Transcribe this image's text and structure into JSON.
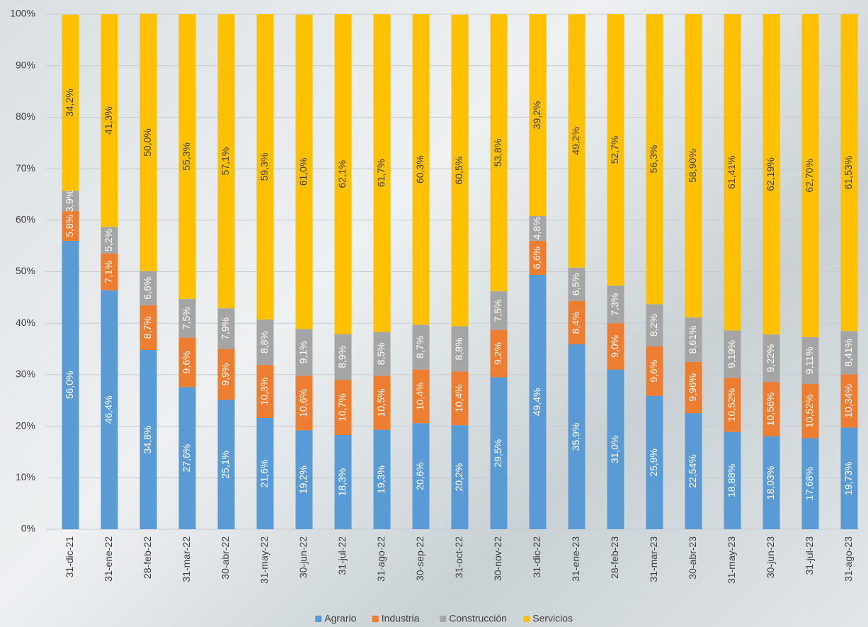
{
  "chart_data": {
    "type": "stacked_bar",
    "categories": [
      "31-dic-21",
      "31-ene-22",
      "28-feb-22",
      "31-mar-22",
      "30-abr-22",
      "31-may-22",
      "30-jun-22",
      "31-jul-22",
      "31-ago-22",
      "30-sep-22",
      "31-oct-22",
      "30-nov-22",
      "31-dic-22",
      "31-ene-23",
      "28-feb-23",
      "31-mar-23",
      "30-abr-23",
      "31-may-23",
      "30-jun-23",
      "31-jul-23",
      "31-ago-23"
    ],
    "series": [
      {
        "name": "Agrario",
        "color": "#5b9bd5",
        "values": [
          56.0,
          46.4,
          34.8,
          27.6,
          25.1,
          21.6,
          19.2,
          18.3,
          19.3,
          20.6,
          20.2,
          29.5,
          49.4,
          35.9,
          31.0,
          25.9,
          22.54,
          18.88,
          18.03,
          17.68,
          19.73
        ],
        "value_labels": [
          "56,0%",
          "46,4%",
          "34,8%",
          "27,6%",
          "25,1%",
          "21,6%",
          "19,2%",
          "18,3%",
          "19,3%",
          "20,6%",
          "20,2%",
          "29,5%",
          "49,4%",
          "35,9%",
          "31,0%",
          "25,9%",
          "22,54%",
          "18,88%",
          "18,03%",
          "17,68%",
          "19,73%"
        ]
      },
      {
        "name": "Industria",
        "color": "#ed7d31",
        "values": [
          5.8,
          7.1,
          8.7,
          9.6,
          9.9,
          10.3,
          10.6,
          10.7,
          10.5,
          10.4,
          10.4,
          9.2,
          6.6,
          8.4,
          9.0,
          9.6,
          9.96,
          10.52,
          10.56,
          10.52,
          10.34
        ],
        "value_labels": [
          "5,8%",
          "7,1%",
          "8,7%",
          "9,6%",
          "9,9%",
          "10,3%",
          "10,6%",
          "10,7%",
          "10,5%",
          "10,4%",
          "10,4%",
          "9,2%",
          "6,6%",
          "8,4%",
          "9,0%",
          "9,6%",
          "9,96%",
          "10,52%",
          "10,56%",
          "10,52%",
          "10,34%"
        ]
      },
      {
        "name": "Construcción",
        "color": "#a5a5a5",
        "values": [
          3.9,
          5.2,
          6.6,
          7.5,
          7.9,
          8.8,
          9.1,
          8.9,
          8.5,
          8.7,
          8.8,
          7.5,
          4.8,
          6.5,
          7.3,
          8.2,
          8.61,
          9.19,
          9.22,
          9.11,
          8.41
        ],
        "value_labels": [
          "3,9%",
          "5,2%",
          "6,6%",
          "7,5%",
          "7,9%",
          "8,8%",
          "9,1%",
          "8,9%",
          "8,5%",
          "8,7%",
          "8,8%",
          "7,5%",
          "4,8%",
          "6,5%",
          "7,3%",
          "8,2%",
          "8,61%",
          "9,19%",
          "9,22%",
          "9,11%",
          "8,41%"
        ]
      },
      {
        "name": "Servicios",
        "color": "#ffc000",
        "values": [
          34.2,
          41.3,
          50.0,
          55.3,
          57.1,
          59.3,
          61.0,
          62.1,
          61.7,
          60.3,
          60.5,
          53.8,
          39.2,
          49.2,
          52.7,
          56.3,
          58.9,
          61.41,
          62.19,
          62.7,
          61.53
        ],
        "value_labels": [
          "34,2%",
          "41,3%",
          "50,0%",
          "55,3%",
          "57,1%",
          "59,3%",
          "61,0%",
          "62,1%",
          "61,7%",
          "60,3%",
          "60,5%",
          "53,8%",
          "39,2%",
          "49,2%",
          "52,7%",
          "56,3%",
          "58,90%",
          "61,41%",
          "62,19%",
          "62,70%",
          "61,53%"
        ]
      }
    ],
    "ylim": [
      0,
      100
    ],
    "yticks": [
      {
        "value": 0,
        "label": "0%"
      },
      {
        "value": 10,
        "label": "10%"
      },
      {
        "value": 20,
        "label": "20%"
      },
      {
        "value": 30,
        "label": "30%"
      },
      {
        "value": 40,
        "label": "40%"
      },
      {
        "value": 50,
        "label": "50%"
      },
      {
        "value": 60,
        "label": "60%"
      },
      {
        "value": 70,
        "label": "70%"
      },
      {
        "value": 80,
        "label": "80%"
      },
      {
        "value": 90,
        "label": "90%"
      },
      {
        "value": 100,
        "label": "100%"
      }
    ],
    "grid": true
  }
}
